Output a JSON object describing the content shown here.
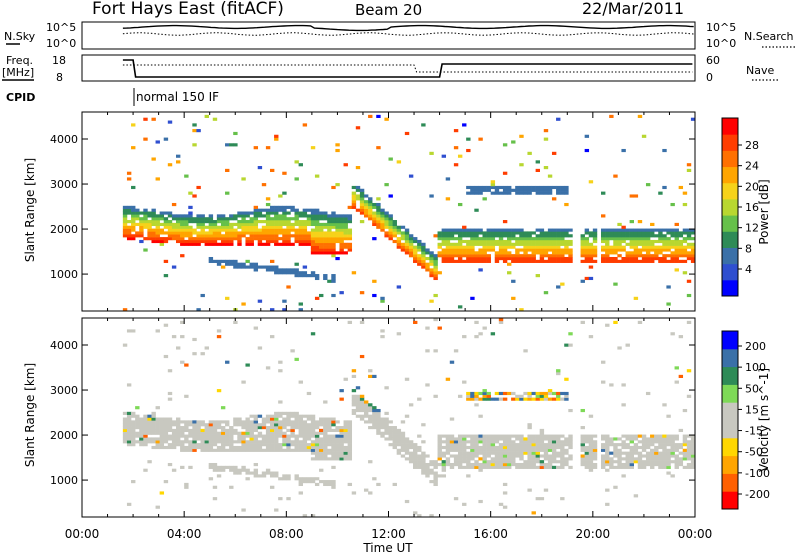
{
  "header": {
    "radar": "Fort Hays East (fitACF)",
    "beam": "Beam 20",
    "date": "22/Mar/2011"
  },
  "noise_panel": {
    "left_label": "N.Sky",
    "left_ticks": [
      "10^5",
      "10^0"
    ],
    "right_label": "N.Search",
    "right_ticks": [
      "10^5",
      "10^0"
    ]
  },
  "freq_panel": {
    "left_label_line1": "Freq.",
    "left_label_line2": "[MHz]",
    "left_ticks": [
      "18",
      "8"
    ],
    "right_label": "Nave",
    "right_ticks": [
      "60",
      "0"
    ]
  },
  "cpid": {
    "label": "CPID",
    "mode": "normal 150 IF"
  },
  "colors": {
    "power": [
      "#0000ff",
      "#2f4fd0",
      "#3a70a8",
      "#2e8b57",
      "#66c04a",
      "#b8d730",
      "#f6d21a",
      "#ffa500",
      "#ff7000",
      "#ff3d00",
      "#ff0000"
    ],
    "velocity": [
      "#ff0000",
      "#ff6000",
      "#ffa500",
      "#ffd700",
      "#c8c8c0",
      "#c8c8c0",
      "#7ed957",
      "#2e8b57",
      "#3a70a8",
      "#0000ff"
    ]
  },
  "chart_data": [
    {
      "type": "heatmap",
      "title": "",
      "xlabel": "Time UT",
      "ylabel": "Slant Range [km]",
      "xlim": [
        "00:00",
        "24:00"
      ],
      "ylim": [
        180,
        4600
      ],
      "x_tick_labels": [
        "00:00",
        "04:00",
        "08:00",
        "12:00",
        "16:00",
        "20:00",
        "00:00"
      ],
      "y_tick_values": [
        1000,
        2000,
        3000,
        4000
      ],
      "y_tick_labels": [
        "1000",
        "2000",
        "3000",
        "4000"
      ],
      "colorbar": {
        "title": "Power [dB]",
        "labels": [
          "28",
          "24",
          "20",
          "16",
          "12",
          "8",
          "4"
        ],
        "range": [
          0,
          30
        ]
      },
      "features": [
        {
          "name": "main backscatter band",
          "t_start_h": 1.6,
          "t_end_h": 10.5,
          "range_km": [
            1700,
            2500
          ],
          "peak_power_db": 28
        },
        {
          "name": "descending echo",
          "t_start_h": 11.0,
          "t_end_h": 14.0,
          "range_km_start": 2500,
          "range_km_end": 1000,
          "peak_power_db": 26
        },
        {
          "name": "afternoon band",
          "t_start_h": 14.0,
          "t_end_h": 24.0,
          "range_km": [
            1300,
            2000
          ],
          "peak_power_db": 28
        },
        {
          "name": "lower weak band",
          "t_start_h": 5.0,
          "t_end_h": 10.0,
          "range_km_start": 1300,
          "range_km_end": 900,
          "peak_power_db": 6
        },
        {
          "name": "upper weak band",
          "t_start_h": 15.0,
          "t_end_h": 19.0,
          "range_km": [
            2800,
            2950
          ],
          "peak_power_db": 6
        },
        {
          "name": "data gaps",
          "gaps_h": [
            [
              19.2,
              19.6
            ],
            [
              20.1,
              20.3
            ]
          ]
        }
      ]
    },
    {
      "type": "heatmap",
      "title": "",
      "xlabel": "Time UT",
      "ylabel": "Slant Range [km]",
      "xlim": [
        "00:00",
        "24:00"
      ],
      "ylim": [
        180,
        4600
      ],
      "x_tick_labels": [
        "00:00",
        "04:00",
        "08:00",
        "12:00",
        "16:00",
        "20:00",
        "00:00"
      ],
      "y_tick_values": [
        1000,
        2000,
        3000,
        4000
      ],
      "y_tick_labels": [
        "1000",
        "2000",
        "3000",
        "4000"
      ],
      "colorbar": {
        "title": "Velocity [m s^-1]",
        "labels": [
          "200",
          "100",
          "50",
          "15",
          "-15",
          "-50",
          "-100",
          "-200"
        ],
        "range": [
          -250,
          250
        ]
      },
      "features": [
        {
          "name": "ground scatter",
          "t_start_h": 1.6,
          "t_end_h": 10.5,
          "range_km": [
            1500,
            2700
          ],
          "velocity": 0
        },
        {
          "name": "descending echo",
          "t_start_h": 11.0,
          "t_end_h": 14.0,
          "range_km_start": 2500,
          "range_km_end": 1000,
          "velocity": 40
        },
        {
          "name": "afternoon ground scatter",
          "t_start_h": 14.0,
          "t_end_h": 24.0,
          "range_km": [
            1200,
            2000
          ],
          "velocity": 0
        },
        {
          "name": "lower band",
          "t_start_h": 5.0,
          "t_end_h": 10.0,
          "range_km_start": 1300,
          "range_km_end": 900,
          "velocity": 40
        }
      ]
    }
  ]
}
